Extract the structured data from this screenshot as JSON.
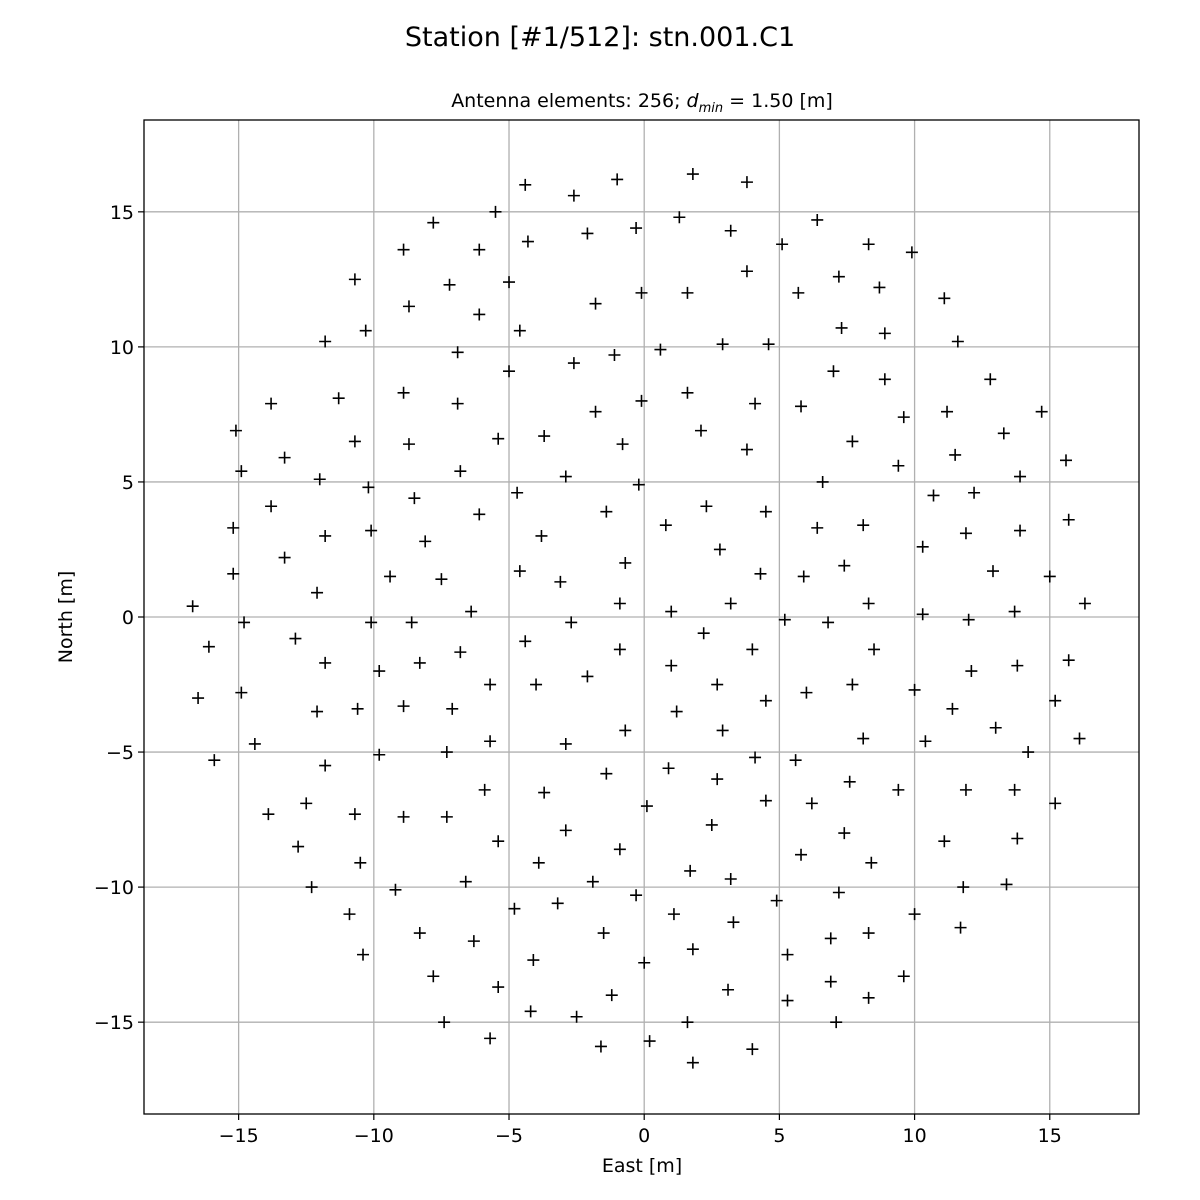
{
  "figure": {
    "title": "Station [#1/512]: stn.001.C1"
  },
  "chart_data": {
    "type": "scatter",
    "marker": "+",
    "marker_color": "#000000",
    "subtitle_prefix": "Antenna elements: 256; ",
    "subtitle_var": "d",
    "subtitle_sub": "min",
    "subtitle_suffix": " = 1.50 [m]",
    "xlabel": "East [m]",
    "ylabel": "North [m]",
    "xlim": [
      -18.5,
      18.3
    ],
    "ylim": [
      -18.4,
      18.4
    ],
    "grid": true,
    "xticks": [
      -15,
      -10,
      -5,
      0,
      5,
      10,
      15
    ],
    "yticks": [
      -15,
      -10,
      -5,
      0,
      5,
      10,
      15
    ],
    "xtick_labels": [
      "−15",
      "−10",
      "−5",
      "0",
      "5",
      "10",
      "15"
    ],
    "ytick_labels": [
      "−15",
      "−10",
      "−5",
      "0",
      "5",
      "10",
      "15"
    ],
    "points": [
      [
        -16.7,
        0.4
      ],
      [
        -16.1,
        -1.1
      ],
      [
        -16.5,
        -3.0
      ],
      [
        -15.9,
        -5.3
      ],
      [
        -15.1,
        6.9
      ],
      [
        -14.9,
        5.4
      ],
      [
        -15.2,
        3.3
      ],
      [
        -15.2,
        1.6
      ],
      [
        -14.8,
        -0.2
      ],
      [
        -14.9,
        -2.8
      ],
      [
        -14.4,
        -4.7
      ],
      [
        -13.9,
        -7.3
      ],
      [
        -13.8,
        7.9
      ],
      [
        -13.8,
        4.1
      ],
      [
        -13.3,
        5.9
      ],
      [
        -13.3,
        2.2
      ],
      [
        -12.9,
        -0.8
      ],
      [
        -12.8,
        -8.5
      ],
      [
        -12.5,
        -6.9
      ],
      [
        -12.3,
        -10.0
      ],
      [
        -12.1,
        -3.5
      ],
      [
        -12.1,
        0.9
      ],
      [
        -12.0,
        5.1
      ],
      [
        -11.8,
        10.2
      ],
      [
        -11.8,
        3.0
      ],
      [
        -11.8,
        -1.7
      ],
      [
        -11.8,
        -5.5
      ],
      [
        -11.3,
        8.1
      ],
      [
        -10.9,
        -11.0
      ],
      [
        -10.7,
        12.5
      ],
      [
        -10.7,
        6.5
      ],
      [
        -10.7,
        -7.3
      ],
      [
        -10.6,
        -3.4
      ],
      [
        -10.5,
        -9.1
      ],
      [
        -10.4,
        -12.5
      ],
      [
        -10.3,
        10.6
      ],
      [
        -10.2,
        4.8
      ],
      [
        -10.1,
        3.2
      ],
      [
        -10.1,
        -0.2
      ],
      [
        -9.8,
        -2.0
      ],
      [
        -9.8,
        -5.1
      ],
      [
        -9.4,
        1.5
      ],
      [
        -9.2,
        -10.1
      ],
      [
        -8.9,
        13.6
      ],
      [
        -8.9,
        8.3
      ],
      [
        -8.9,
        -7.4
      ],
      [
        -8.9,
        -3.3
      ],
      [
        -8.7,
        11.5
      ],
      [
        -8.7,
        6.4
      ],
      [
        -8.6,
        -0.2
      ],
      [
        -8.5,
        4.4
      ],
      [
        -8.3,
        -1.7
      ],
      [
        -8.3,
        -11.7
      ],
      [
        -8.1,
        2.8
      ],
      [
        -7.8,
        14.6
      ],
      [
        -7.8,
        -13.3
      ],
      [
        -7.5,
        1.4
      ],
      [
        -7.4,
        -15.0
      ],
      [
        -7.3,
        -5.0
      ],
      [
        -7.3,
        -7.4
      ],
      [
        -7.2,
        12.3
      ],
      [
        -7.1,
        -3.4
      ],
      [
        -6.9,
        9.8
      ],
      [
        -6.9,
        7.9
      ],
      [
        -6.8,
        5.4
      ],
      [
        -6.8,
        -1.3
      ],
      [
        -6.6,
        -9.8
      ],
      [
        -6.4,
        0.2
      ],
      [
        -6.3,
        -12.0
      ],
      [
        -6.1,
        13.6
      ],
      [
        -6.1,
        11.2
      ],
      [
        -6.1,
        3.8
      ],
      [
        -5.9,
        -6.4
      ],
      [
        -5.7,
        -15.6
      ],
      [
        -5.7,
        -2.5
      ],
      [
        -5.7,
        -4.6
      ],
      [
        -5.5,
        15.0
      ],
      [
        -5.4,
        -13.7
      ],
      [
        -5.4,
        -8.3
      ],
      [
        -5.4,
        6.6
      ],
      [
        -5.0,
        12.4
      ],
      [
        -5.0,
        9.1
      ],
      [
        -4.8,
        -10.8
      ],
      [
        -4.7,
        4.6
      ],
      [
        -4.6,
        1.7
      ],
      [
        -4.6,
        10.6
      ],
      [
        -4.4,
        16.0
      ],
      [
        -4.4,
        -0.9
      ],
      [
        -4.3,
        13.9
      ],
      [
        -4.2,
        -14.6
      ],
      [
        -4.1,
        -12.7
      ],
      [
        -4.0,
        -2.5
      ],
      [
        -3.9,
        -9.1
      ],
      [
        -3.8,
        3.0
      ],
      [
        -3.7,
        6.7
      ],
      [
        -3.7,
        -6.5
      ],
      [
        -3.2,
        -10.6
      ],
      [
        -3.1,
        1.3
      ],
      [
        -2.9,
        5.2
      ],
      [
        -2.9,
        -4.7
      ],
      [
        -2.9,
        -7.9
      ],
      [
        -2.7,
        -0.2
      ],
      [
        -2.6,
        15.6
      ],
      [
        -2.6,
        9.4
      ],
      [
        -2.5,
        -14.8
      ],
      [
        -2.1,
        14.2
      ],
      [
        -2.1,
        -2.2
      ],
      [
        -1.9,
        -9.8
      ],
      [
        -1.8,
        11.6
      ],
      [
        -1.8,
        7.6
      ],
      [
        -1.6,
        -15.9
      ],
      [
        -1.5,
        -11.7
      ],
      [
        -1.4,
        3.9
      ],
      [
        -1.4,
        -5.8
      ],
      [
        -1.2,
        -14.0
      ],
      [
        -1.1,
        9.7
      ],
      [
        -1.0,
        16.2
      ],
      [
        -0.9,
        0.5
      ],
      [
        -0.9,
        -1.2
      ],
      [
        -0.9,
        -8.6
      ],
      [
        -0.8,
        6.4
      ],
      [
        -0.7,
        2.0
      ],
      [
        -0.7,
        -4.2
      ],
      [
        -0.3,
        14.4
      ],
      [
        -0.3,
        -10.3
      ],
      [
        -0.2,
        4.9
      ],
      [
        -0.1,
        12.0
      ],
      [
        -0.1,
        8.0
      ],
      [
        0.0,
        -12.8
      ],
      [
        0.1,
        -7.0
      ],
      [
        0.2,
        -15.7
      ],
      [
        0.6,
        9.9
      ],
      [
        0.8,
        3.4
      ],
      [
        0.9,
        -5.6
      ],
      [
        1.0,
        0.2
      ],
      [
        1.0,
        -1.8
      ],
      [
        1.1,
        -11.0
      ],
      [
        1.2,
        -3.5
      ],
      [
        1.3,
        14.8
      ],
      [
        1.6,
        12.0
      ],
      [
        1.6,
        8.3
      ],
      [
        1.6,
        -15.0
      ],
      [
        1.7,
        -9.4
      ],
      [
        1.8,
        16.4
      ],
      [
        1.8,
        -12.3
      ],
      [
        1.8,
        -16.5
      ],
      [
        2.1,
        6.9
      ],
      [
        2.2,
        -0.6
      ],
      [
        2.3,
        4.1
      ],
      [
        2.5,
        -7.7
      ],
      [
        2.7,
        -2.5
      ],
      [
        2.7,
        -6.0
      ],
      [
        2.8,
        2.5
      ],
      [
        2.9,
        10.1
      ],
      [
        2.9,
        -4.2
      ],
      [
        3.1,
        -13.8
      ],
      [
        3.2,
        0.5
      ],
      [
        3.2,
        14.3
      ],
      [
        3.2,
        -9.7
      ],
      [
        3.3,
        -11.3
      ],
      [
        3.8,
        16.1
      ],
      [
        3.8,
        12.8
      ],
      [
        3.8,
        6.2
      ],
      [
        4.0,
        -1.2
      ],
      [
        4.0,
        -16.0
      ],
      [
        4.1,
        7.9
      ],
      [
        4.1,
        -5.2
      ],
      [
        4.3,
        1.6
      ],
      [
        4.5,
        3.9
      ],
      [
        4.5,
        -3.1
      ],
      [
        4.5,
        -6.8
      ],
      [
        4.6,
        10.1
      ],
      [
        4.9,
        -10.5
      ],
      [
        5.1,
        13.8
      ],
      [
        5.2,
        -0.1
      ],
      [
        5.3,
        -12.5
      ],
      [
        5.3,
        -14.2
      ],
      [
        5.6,
        -5.3
      ],
      [
        5.7,
        12.0
      ],
      [
        5.8,
        7.8
      ],
      [
        5.8,
        -8.8
      ],
      [
        5.9,
        1.5
      ],
      [
        6.0,
        -2.8
      ],
      [
        6.2,
        -6.9
      ],
      [
        6.4,
        14.7
      ],
      [
        6.4,
        3.3
      ],
      [
        6.6,
        5.0
      ],
      [
        6.8,
        -0.2
      ],
      [
        6.9,
        -11.9
      ],
      [
        6.9,
        -13.5
      ],
      [
        7.0,
        9.1
      ],
      [
        7.1,
        -15.0
      ],
      [
        7.2,
        12.6
      ],
      [
        7.2,
        -10.2
      ],
      [
        7.3,
        10.7
      ],
      [
        7.4,
        -8.0
      ],
      [
        7.4,
        1.9
      ],
      [
        7.6,
        -6.1
      ],
      [
        7.7,
        6.5
      ],
      [
        7.7,
        -2.5
      ],
      [
        8.1,
        3.4
      ],
      [
        8.1,
        -4.5
      ],
      [
        8.3,
        13.8
      ],
      [
        8.3,
        0.5
      ],
      [
        8.3,
        -11.7
      ],
      [
        8.3,
        -14.1
      ],
      [
        8.4,
        -9.1
      ],
      [
        8.5,
        -1.2
      ],
      [
        8.7,
        12.2
      ],
      [
        8.9,
        10.5
      ],
      [
        8.9,
        8.8
      ],
      [
        9.4,
        5.6
      ],
      [
        9.4,
        -6.4
      ],
      [
        9.6,
        7.4
      ],
      [
        9.6,
        -13.3
      ],
      [
        9.9,
        13.5
      ],
      [
        10.0,
        -2.7
      ],
      [
        10.0,
        -11.0
      ],
      [
        10.3,
        2.6
      ],
      [
        10.3,
        0.1
      ],
      [
        10.4,
        -4.6
      ],
      [
        10.7,
        4.5
      ],
      [
        11.1,
        11.8
      ],
      [
        11.1,
        -8.3
      ],
      [
        11.2,
        7.6
      ],
      [
        11.4,
        -3.4
      ],
      [
        11.5,
        6.0
      ],
      [
        11.6,
        10.2
      ],
      [
        11.7,
        -11.5
      ],
      [
        11.8,
        -10.0
      ],
      [
        11.9,
        3.1
      ],
      [
        11.9,
        -6.4
      ],
      [
        12.0,
        -0.1
      ],
      [
        12.1,
        -2.0
      ],
      [
        12.2,
        4.6
      ],
      [
        12.8,
        8.8
      ],
      [
        12.9,
        1.7
      ],
      [
        13.0,
        -4.1
      ],
      [
        13.3,
        6.8
      ],
      [
        13.4,
        -9.9
      ],
      [
        13.7,
        0.2
      ],
      [
        13.7,
        -6.4
      ],
      [
        13.8,
        -8.2
      ],
      [
        13.8,
        -1.8
      ],
      [
        13.9,
        5.2
      ],
      [
        13.9,
        3.2
      ],
      [
        14.2,
        -5.0
      ],
      [
        14.7,
        7.6
      ],
      [
        15.0,
        1.5
      ],
      [
        15.2,
        -6.9
      ],
      [
        15.2,
        -3.1
      ],
      [
        15.6,
        5.8
      ],
      [
        15.7,
        3.6
      ],
      [
        15.7,
        -1.6
      ],
      [
        16.1,
        -4.5
      ],
      [
        16.3,
        0.5
      ]
    ]
  }
}
